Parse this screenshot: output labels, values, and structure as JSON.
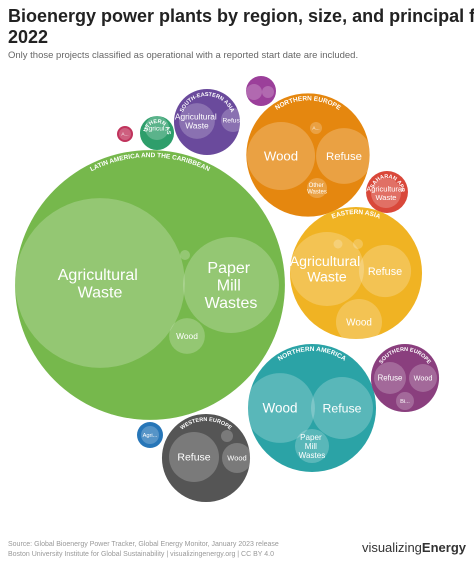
{
  "chart_data": {
    "type": "pack",
    "title": [
      "Bioenergy power plants by region, size, and principal fuel in",
      "2022"
    ],
    "subtitle": "Only those projects classified as operational with a reported start date are included.",
    "groups": [
      {
        "name": "LATIN AMERICA AND THE CARIBBEAN",
        "color": "#76b84c",
        "value": 182,
        "children": [
          {
            "name": "Agricultural Waste",
            "value": 72
          },
          {
            "name": "Paper Mill Wastes",
            "value": 23
          },
          {
            "name": "Wood",
            "value": 3.2
          },
          {
            "name": null,
            "value": 0.25
          }
        ]
      },
      {
        "name": "NORTHERN EUROPE",
        "color": "#e5870f",
        "value": 38,
        "children": [
          {
            "name": "Wood",
            "value": 11.6
          },
          {
            "name": "Refuse",
            "value": 7.8
          },
          {
            "name": "Other Wastes",
            "value": 1
          },
          {
            "name": "A...",
            "value": 0.36
          }
        ]
      },
      {
        "name": "SOUTH-EASTERN ASIA",
        "color": "#6a4a9c",
        "value": 10.9,
        "children": [
          {
            "name": "Agricultural Waste",
            "value": 3.2
          },
          {
            "name": "Refuse",
            "value": 1.44
          }
        ]
      },
      {
        "name": "SOUTHERN ASIA",
        "color": "#2e9e6b",
        "value": 2.9,
        "children": [
          {
            "name": "Agricul...",
            "value": 1.44
          }
        ]
      },
      {
        "name": null,
        "color": "#c0335c",
        "value": 0.64,
        "children": [
          {
            "name": "A...",
            "value": 0.36
          }
        ]
      },
      {
        "name": null,
        "color": "#9b3f9a",
        "value": 2.25,
        "children": [
          {
            "name": null,
            "value": 0.64
          },
          {
            "name": null,
            "value": 0.36
          }
        ]
      },
      {
        "name": "SUB SAHARAN AFRICA",
        "color": "#d9483a",
        "value": 4.4,
        "children": [
          {
            "name": "Agricultural Waste",
            "value": 2.25
          }
        ]
      },
      {
        "name": "EASTERN ASIA",
        "color": "#f0b323",
        "value": 43.6,
        "children": [
          {
            "name": "Agricultural Waste",
            "value": 13.7
          },
          {
            "name": "Refuse",
            "value": 6.8
          },
          {
            "name": "Wood",
            "value": 5.3
          },
          {
            "name": null,
            "value": 0.25
          },
          {
            "name": null,
            "value": 0.2
          }
        ]
      },
      {
        "name": "NORTHERN AMERICA",
        "color": "#2ba3a6",
        "value": 41,
        "children": [
          {
            "name": "Wood",
            "value": 12.2
          },
          {
            "name": "Refuse",
            "value": 9.6
          },
          {
            "name": "Paper Mill Wastes",
            "value": 2.9
          }
        ]
      },
      {
        "name": "SOUTHERN EUROPE",
        "color": "#8a3f7e",
        "value": 11.6,
        "children": [
          {
            "name": "Refuse",
            "value": 2.56
          },
          {
            "name": "Wood",
            "value": 1.96
          },
          {
            "name": "Bi...",
            "value": 0.81
          }
        ]
      },
      {
        "name": "WESTERN EUROPE",
        "color": "#555555",
        "value": 19.4,
        "children": [
          {
            "name": "Refuse",
            "value": 6.25
          },
          {
            "name": "Wood",
            "value": 2.25
          },
          {
            "name": null,
            "value": 0.36
          }
        ]
      },
      {
        "name": null,
        "color": "#2776b8",
        "value": 1.69,
        "children": [
          {
            "name": "Agri...",
            "value": 0.81
          }
        ]
      }
    ]
  },
  "source": [
    "Source: Global Bioenergy Power Tracker, Global Energy Monitor, January 2023 release",
    "Boston University Institute for Global Sustainability | visualizingenergy.org | CC BY 4.0"
  ],
  "brand": [
    "visualizing",
    "Energy"
  ]
}
